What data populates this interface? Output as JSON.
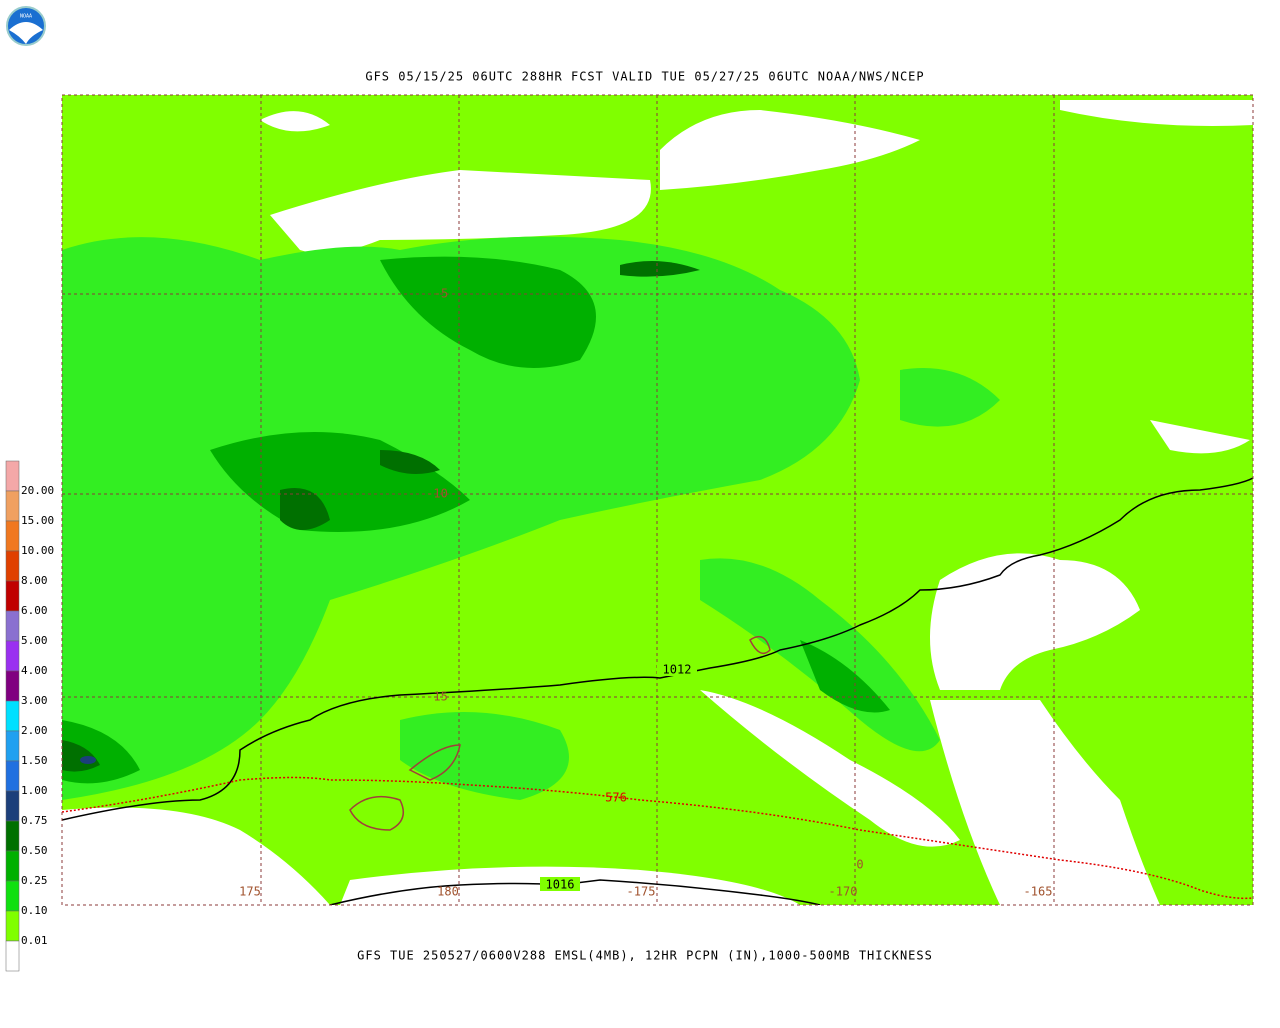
{
  "header": {
    "logo": "NOAA",
    "title": "GFS 05/15/25 06UTC 288HR FCST VALID TUE 05/27/25 06UTC NOAA/NWS/NCEP"
  },
  "footer": {
    "caption": "GFS TUE 250527/0600V288 EMSL(4MB), 12HR PCPN (IN),1000-500MB THICKNESS"
  },
  "legend": {
    "labels": [
      "20.00",
      "15.00",
      "10.00",
      "8.00",
      "6.00",
      "5.00",
      "4.00",
      "3.00",
      "2.00",
      "1.50",
      "1.00",
      "0.75",
      "0.50",
      "0.25",
      "0.10",
      "0.01"
    ],
    "colors": [
      "#f4a8a8",
      "#f0a060",
      "#f07820",
      "#e04000",
      "#c00000",
      "#8a70d0",
      "#9a30f0",
      "#800080",
      "#00e0ff",
      "#20a0f0",
      "#2070e0",
      "#1c3f7a",
      "#007000",
      "#00b000",
      "#10e010",
      "#80ff00",
      "#ffffff"
    ]
  },
  "map": {
    "lat_labels": [
      "-5",
      "-10",
      "-15"
    ],
    "lon_labels": [
      "175",
      "180",
      "-175",
      "-170",
      "-165"
    ],
    "contour_labels": [
      "1012",
      "1016",
      "576",
      "0"
    ]
  }
}
